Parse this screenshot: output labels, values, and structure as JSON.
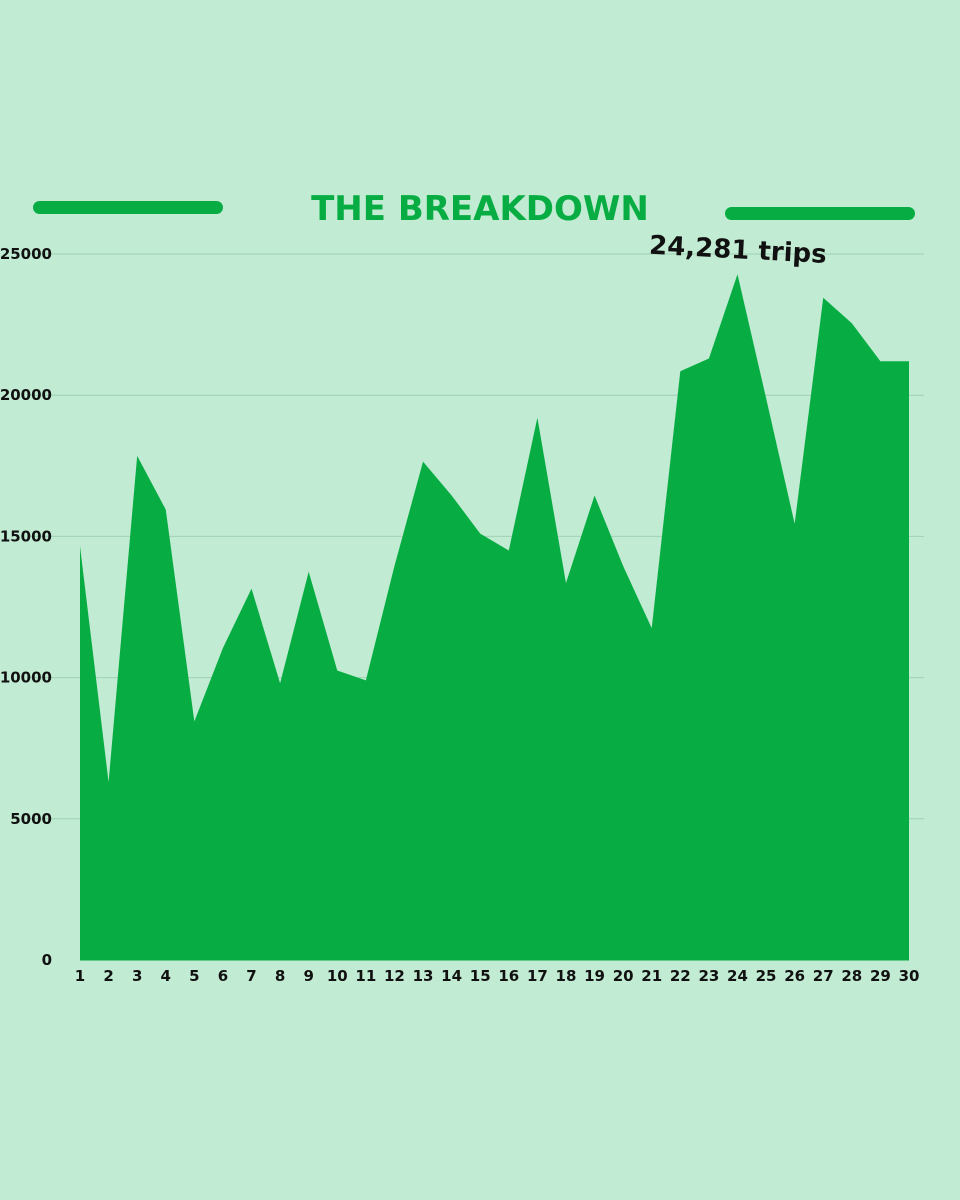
{
  "colors": {
    "background": "#c1ebd2",
    "accent": "#07ad43",
    "grid": "#9fd2b4",
    "text": "#111111"
  },
  "chart_data": {
    "type": "area",
    "title": "THE BREAKDOWN",
    "xlabel": "",
    "ylabel": "",
    "x": [
      1,
      2,
      3,
      4,
      5,
      6,
      7,
      8,
      9,
      10,
      11,
      12,
      13,
      14,
      15,
      16,
      17,
      18,
      19,
      20,
      21,
      22,
      23,
      24,
      25,
      26,
      27,
      28,
      29,
      30
    ],
    "values": [
      14650,
      6300,
      17850,
      15950,
      8450,
      11050,
      13150,
      9800,
      13750,
      10250,
      9900,
      13950,
      17650,
      16450,
      15100,
      14500,
      19200,
      13350,
      16450,
      13950,
      11750,
      20850,
      21300,
      24281,
      19900,
      15450,
      23450,
      22550,
      21200,
      21200
    ],
    "ylim": [
      0,
      25000
    ],
    "y_ticks": [
      0,
      5000,
      10000,
      15000,
      20000,
      25000
    ],
    "grid": true,
    "annotations": [
      {
        "text": "24,281 trips",
        "x": 24,
        "y": 24281
      }
    ]
  }
}
